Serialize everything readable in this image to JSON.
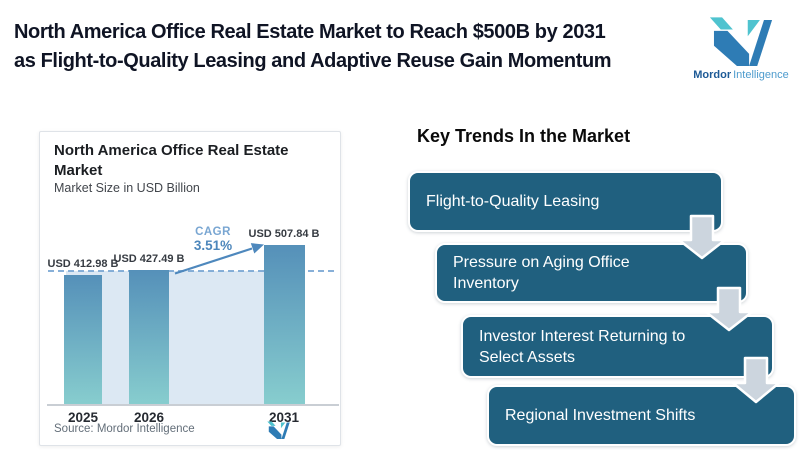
{
  "header": {
    "title_line1": "North America Office Real Estate Market to Reach $500B by 2031",
    "title_line2": "as Flight-to-Quality Leasing and Adaptive Reuse Gain Momentum"
  },
  "brand": {
    "name_bold": "Mordor",
    "name_light": "Intelligence"
  },
  "chart_card": {
    "title": "North America Office Real Estate Market",
    "subtitle": "Market Size in USD Billion",
    "cagr_label": "CAGR",
    "cagr_value": "3.51%",
    "source": "Source: Mordor Intelligence"
  },
  "chart_data": {
    "type": "bar",
    "title": "North America Office Real Estate Market",
    "ylabel": "Market Size in USD Billion",
    "categories": [
      "2025",
      "2026",
      "2031"
    ],
    "values": [
      412.98,
      427.49,
      507.84
    ],
    "value_labels": [
      "USD 412.98 B",
      "USD 427.49 B",
      "USD 507.84 B"
    ],
    "unit": "USD Billion",
    "cagr_pct": 3.51,
    "baseline_gridline_value": 427.49,
    "ylim": [
      0,
      560
    ],
    "legend_position": "none",
    "grid": "single dashed horizontal reference line at 2026 level",
    "annotations": [
      "CAGR 3.51% with growth arrow from 2026 bar to 2031 bar"
    ]
  },
  "trends": {
    "heading": "Key Trends In the Market",
    "items": [
      "Flight-to-Quality Leasing",
      "Pressure on Aging Office Inventory",
      "Investor Interest Returning to Select Assets",
      "Regional Investment Shifts"
    ]
  },
  "colors": {
    "title_text": "#0f1424",
    "trend_box": "#20607f",
    "trend_arrow_fill": "#ccd5de",
    "bar_gradient_top": "#5590b9",
    "bar_gradient_bottom": "#87cdce",
    "area_fill": "#dce8f3",
    "dashed_line": "#74a3d2",
    "cagr_blue": "#4c86bb",
    "brand_blue": "#2e7cb5",
    "brand_teal": "#4fc3cf"
  }
}
